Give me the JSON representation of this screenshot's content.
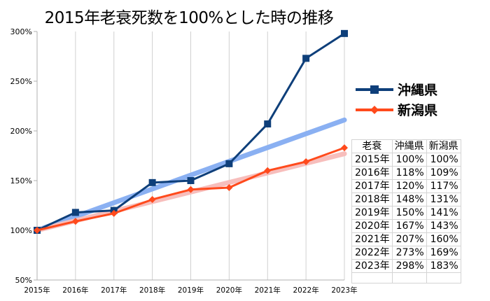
{
  "chart_data": {
    "type": "line",
    "title": "2015年老衰死数を100%とした時の推移",
    "x": [
      "2015年",
      "2016年",
      "2017年",
      "2018年",
      "2019年",
      "2020年",
      "2021年",
      "2022年",
      "2023年"
    ],
    "yticks": [
      "300%",
      "250%",
      "200%",
      "150%",
      "100%",
      "50%"
    ],
    "ylim": [
      50,
      300
    ],
    "grid": "vertical",
    "legend": "right",
    "series": [
      {
        "name": "沖縄県",
        "values": [
          100,
          118,
          120,
          148,
          150,
          167,
          207,
          273,
          298
        ],
        "color": "#0e3f7a",
        "marker": "square",
        "trendline": {
          "from": 100,
          "to": 211,
          "color": "#8ab0f2"
        }
      },
      {
        "name": "新潟県",
        "values": [
          100,
          109,
          117,
          131,
          141,
          143,
          160,
          169,
          183
        ],
        "color": "#ff4a1c",
        "marker": "diamond",
        "trendline": {
          "from": 100,
          "to": 177,
          "color": "#f7bebc"
        }
      }
    ]
  },
  "table": {
    "headers": [
      "老衰",
      "沖縄県",
      "新潟県"
    ],
    "rows": [
      [
        "2015年",
        "100%",
        "100%"
      ],
      [
        "2016年",
        "118%",
        "109%"
      ],
      [
        "2017年",
        "120%",
        "117%"
      ],
      [
        "2018年",
        "148%",
        "131%"
      ],
      [
        "2019年",
        "150%",
        "141%"
      ],
      [
        "2020年",
        "167%",
        "143%"
      ],
      [
        "2021年",
        "207%",
        "160%"
      ],
      [
        "2022年",
        "273%",
        "169%"
      ],
      [
        "2023年",
        "298%",
        "183%"
      ]
    ]
  }
}
